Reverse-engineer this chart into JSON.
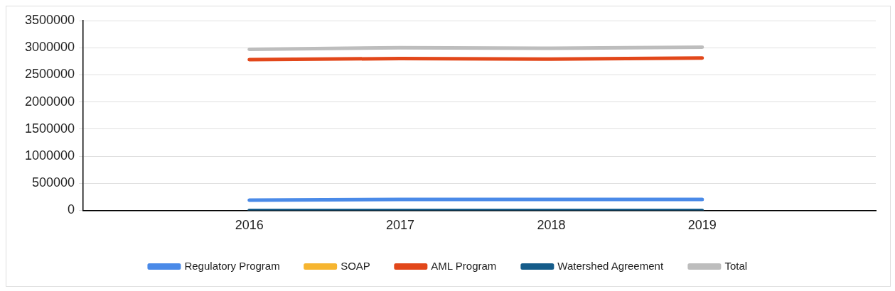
{
  "chart_data": {
    "type": "line",
    "categories": [
      "2016",
      "2017",
      "2018",
      "2019"
    ],
    "series": [
      {
        "name": "Regulatory Program",
        "color": "#4a8ae8",
        "values": [
          190000,
          200000,
          200000,
          200000
        ]
      },
      {
        "name": "SOAP",
        "color": "#f6b530",
        "values": [
          null,
          null,
          null,
          null
        ]
      },
      {
        "name": "AML Program",
        "color": "#e2471a",
        "values": [
          2780000,
          2800000,
          2790000,
          2810000
        ]
      },
      {
        "name": "Watershed Agreement",
        "color": "#155c8a",
        "values": [
          0,
          0,
          0,
          0
        ]
      },
      {
        "name": "Total",
        "color": "#bdbdbd",
        "values": [
          2970000,
          3000000,
          2990000,
          3010000
        ]
      }
    ],
    "ylim": [
      0,
      3500000
    ],
    "yticks": [
      0,
      500000,
      1000000,
      1500000,
      2000000,
      2500000,
      3000000,
      3500000
    ],
    "grid": "y",
    "legend": "bottom",
    "marker": "none",
    "line_style": "solid"
  }
}
